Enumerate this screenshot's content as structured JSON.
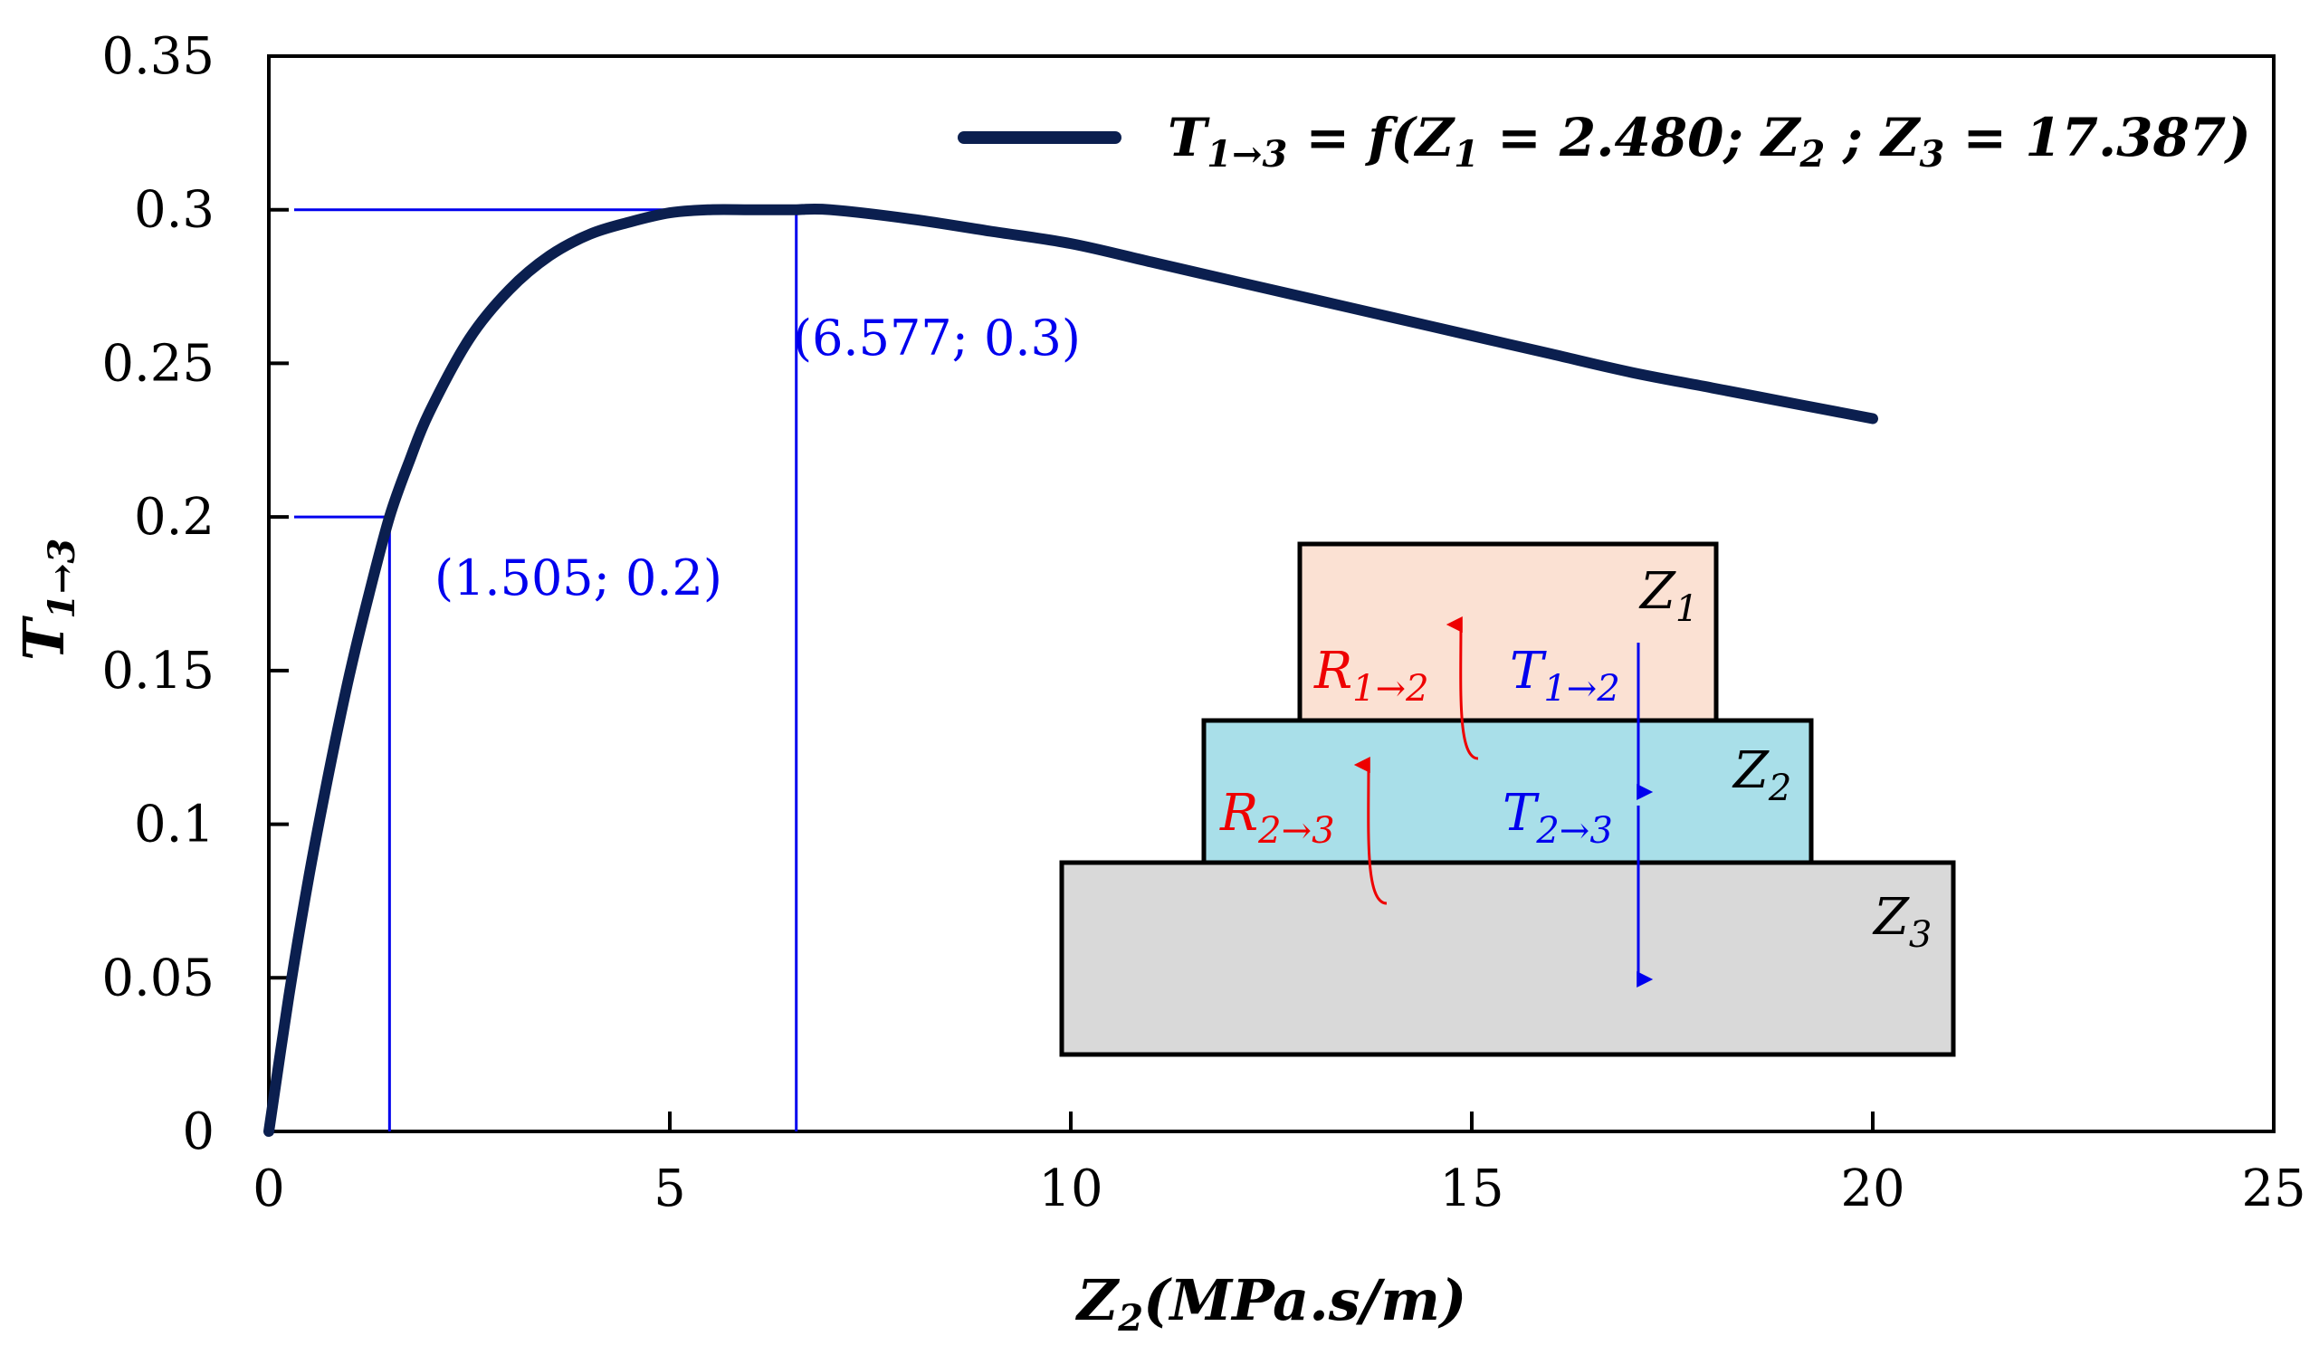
{
  "chart_data": {
    "type": "line",
    "xlabel": {
      "main": "Z",
      "sub": "2",
      "rest": "(MPa.s/m)"
    },
    "ylabel": {
      "main": "T",
      "sub": "1→3"
    },
    "xlim": [
      0,
      25
    ],
    "ylim": [
      0,
      0.35
    ],
    "xticks": [
      "0",
      "5",
      "10",
      "15",
      "20",
      "25"
    ],
    "yticks": [
      "0",
      "0.05",
      "0.1",
      "0.15",
      "0.2",
      "0.25",
      "0.3",
      "0.35"
    ],
    "grid": false,
    "legend_position": "top-right",
    "series": [
      {
        "name": "T1→3 = f(Z1 = 2.480; Z2 ; Z3 = 17.387)",
        "color": "#0b1f4f",
        "x": [
          0,
          0.25,
          0.5,
          0.75,
          1.0,
          1.25,
          1.505,
          1.75,
          2.0,
          2.5,
          3.0,
          3.5,
          4.0,
          4.5,
          5.0,
          5.5,
          6.0,
          6.5,
          6.577,
          7.0,
          8.0,
          9.0,
          10.0,
          11.0,
          12.0,
          13.0,
          14.0,
          15.0,
          16.0,
          17.0,
          18.0,
          19.0,
          20.0
        ],
        "y": [
          0,
          0.044,
          0.083,
          0.117,
          0.148,
          0.175,
          0.2,
          0.218,
          0.234,
          0.258,
          0.274,
          0.285,
          0.292,
          0.296,
          0.299,
          0.3,
          0.3,
          0.3,
          0.3,
          0.3,
          0.297,
          0.293,
          0.289,
          0.283,
          0.277,
          0.271,
          0.265,
          0.259,
          0.253,
          0.247,
          0.242,
          0.237,
          0.232
        ]
      }
    ],
    "legend": {
      "T": "T",
      "T_sub": "1→3",
      "eq1": " = ",
      "f": "f(Z",
      "f_sub": "1",
      "eq2": " = 2.480; Z",
      "z2_sub": "2",
      "sep": " ; Z",
      "z3_sub": "3",
      "eq3": " = 17.387)"
    },
    "annotations": [
      {
        "text": "(1.505; 0.2)",
        "x": 1.505,
        "y": 0.2
      },
      {
        "text": "(6.577; 0.3)",
        "x": 6.577,
        "y": 0.3
      }
    ],
    "inset": {
      "layers": [
        {
          "label": "Z",
          "sub": "1",
          "color": "#fbe1d3"
        },
        {
          "label": "Z",
          "sub": "2",
          "color": "#a9dfe9"
        },
        {
          "label": "Z",
          "sub": "3",
          "color": "#d9d9d9"
        }
      ],
      "reflections": [
        {
          "label": "R",
          "sub": "1→2",
          "color": "#ee0000"
        },
        {
          "label": "R",
          "sub": "2→3",
          "color": "#ee0000"
        }
      ],
      "transmissions": [
        {
          "label": "T",
          "sub": "1→2",
          "color": "#0000ee"
        },
        {
          "label": "T",
          "sub": "2→3",
          "color": "#0000ee"
        }
      ]
    }
  }
}
